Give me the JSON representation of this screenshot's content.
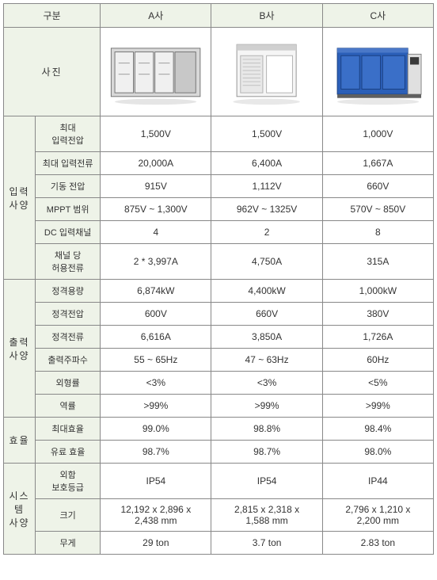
{
  "columns": {
    "category": "구분",
    "companyA": "A사",
    "companyB": "B사",
    "companyC": "C사"
  },
  "photo_label": "사진",
  "sections": {
    "input": {
      "label": "입력\n사양",
      "rows": {
        "max_voltage": {
          "label": "최대\n입력전압",
          "a": "1,500V",
          "b": "1,500V",
          "c": "1,000V"
        },
        "max_current": {
          "label": "최대 입력전류",
          "a": "20,000A",
          "b": "6,400A",
          "c": "1,667A"
        },
        "start_voltage": {
          "label": "기동 전압",
          "a": "915V",
          "b": "1,112V",
          "c": "660V"
        },
        "mppt_range": {
          "label": "MPPT 범위",
          "a": "875V ~ 1,300V",
          "b": "962V ~ 1325V",
          "c": "570V ~ 850V"
        },
        "dc_channels": {
          "label": "DC 입력채널",
          "a": "4",
          "b": "2",
          "c": "8"
        },
        "per_channel": {
          "label": "채널 당\n허용전류",
          "a": "2 * 3,997A",
          "b": "4,750A",
          "c": "315A"
        }
      }
    },
    "output": {
      "label": "출력\n사양",
      "rows": {
        "rated_capacity": {
          "label": "정격용량",
          "a": "6,874kW",
          "b": "4,400kW",
          "c": "1,000kW"
        },
        "rated_voltage": {
          "label": "정격전압",
          "a": "600V",
          "b": "660V",
          "c": "380V"
        },
        "rated_current": {
          "label": "정격전류",
          "a": "6,616A",
          "b": "3,850A",
          "c": "1,726A"
        },
        "output_freq": {
          "label": "출력주파수",
          "a": "55 ~ 65Hz",
          "b": "47 ~ 63Hz",
          "c": "60Hz"
        },
        "thd": {
          "label": "외형률",
          "a": "<3%",
          "b": "<3%",
          "c": "<5%"
        },
        "power_factor": {
          "label": "역률",
          "a": ">99%",
          "b": ">99%",
          "c": ">99%"
        }
      }
    },
    "efficiency": {
      "label": "효율",
      "rows": {
        "max_eff": {
          "label": "최대효율",
          "a": "99.0%",
          "b": "98.8%",
          "c": "98.4%"
        },
        "euro_eff": {
          "label": "유료 효율",
          "a": "98.7%",
          "b": "98.7%",
          "c": "98.0%"
        }
      }
    },
    "system": {
      "label": "시스\n템\n사양",
      "rows": {
        "protection": {
          "label": "외함\n보호등급",
          "a": "IP54",
          "b": "IP54",
          "c": "IP44"
        },
        "size": {
          "label": "크기",
          "a": "12,192 x 2,896 x\n2,438 mm",
          "b": "2,815 x 2,318 x\n1,588 mm",
          "c": "2,796 x 1,210 x\n2,200 mm"
        },
        "weight": {
          "label": "무게",
          "a": "29 ton",
          "b": "3.7 ton",
          "c": "2.83 ton"
        }
      }
    }
  },
  "colors": {
    "header_bg": "#eef3e8",
    "border": "#888888",
    "text": "#333333",
    "productA_body": "#d8d8d8",
    "productA_frame": "#707070",
    "productB_body": "#f0f0f0",
    "productB_vents": "#c0c0c0",
    "productC_body": "#2b5fb8",
    "productC_panel": "#3a3a3a"
  }
}
